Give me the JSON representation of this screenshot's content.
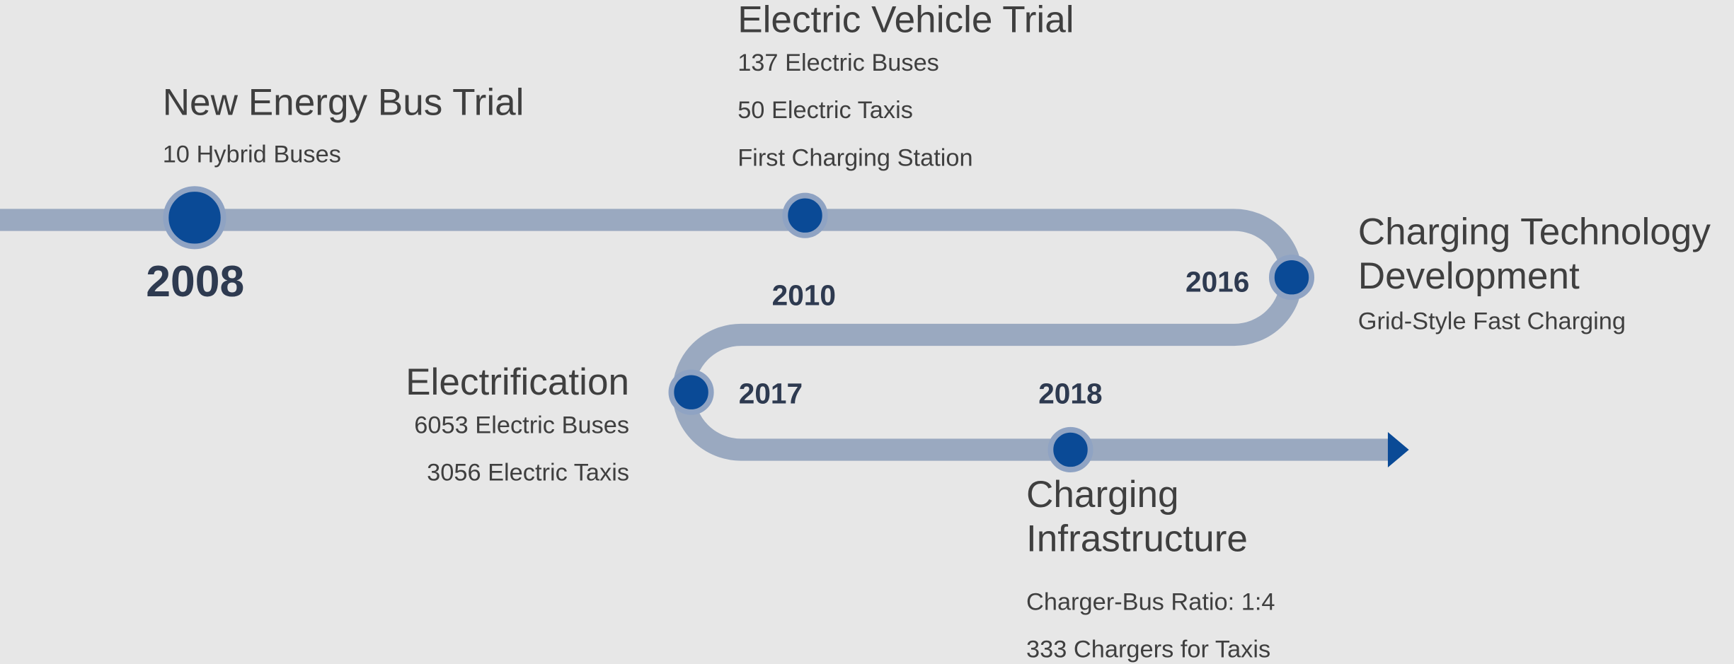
{
  "milestones": [
    {
      "year": "2008",
      "title": "New Energy Bus Trial",
      "details": [
        "10 Hybrid Buses"
      ]
    },
    {
      "year": "2010",
      "title": "Electric Vehicle Trial",
      "details": [
        "137 Electric Buses",
        "50 Electric Taxis",
        "First Charging Station"
      ]
    },
    {
      "year": "2016",
      "title": "Charging Technology Development",
      "details": [
        "Grid-Style Fast Charging"
      ]
    },
    {
      "year": "2017",
      "title": "Electrification",
      "details": [
        "6053 Electric Buses",
        "3056 Electric Taxis"
      ]
    },
    {
      "year": "2018",
      "title": "Charging Infrastructure",
      "details": [
        "Charger-Bus Ratio: 1:4",
        "333 Chargers for Taxis"
      ]
    }
  ]
}
